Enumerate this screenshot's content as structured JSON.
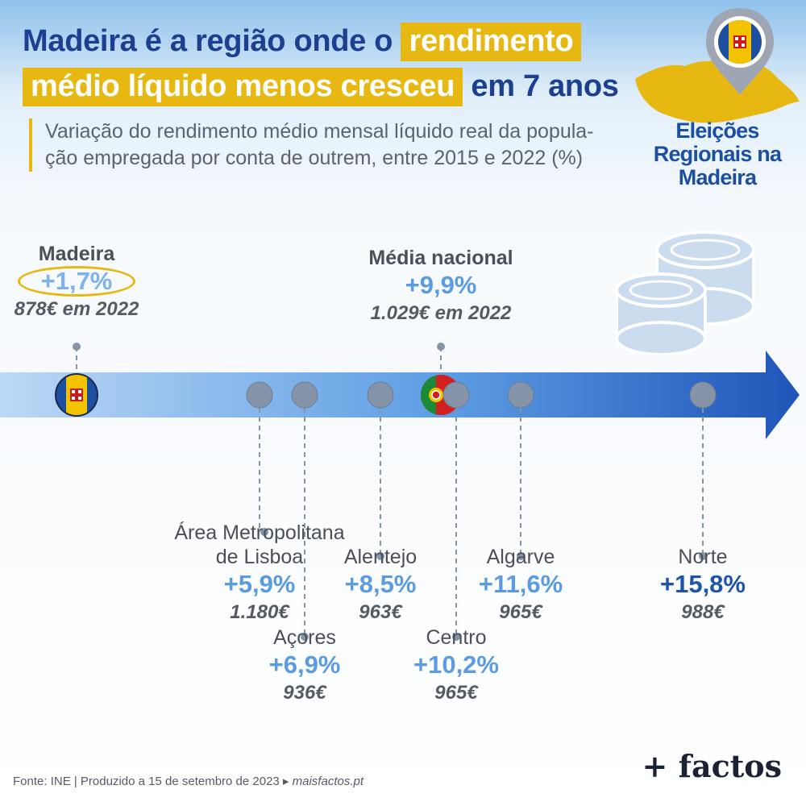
{
  "title": {
    "part1": "Madeira é a região onde o",
    "highlight1": "rendimento",
    "highlight2": "médio líquido menos cresceu",
    "part2": "em 7 anos"
  },
  "subtitle_line1": "Variação do rendimento médio mensal líquido real da popula-",
  "subtitle_line2": "ção empregada por conta de outrem, entre 2015 e 2022 (%)",
  "badge": {
    "line1": "Eleições",
    "line2": "Regionais na",
    "line3": "Madeira"
  },
  "colors": {
    "title": "#1c3f8f",
    "highlight": "#e7b812",
    "accent_light": "#5b9be0",
    "accent_dark": "#1f54a8",
    "dot": "#8594a8",
    "coins": "#cbdcee"
  },
  "chart_data": {
    "type": "timeline",
    "title": "Variação do rendimento médio mensal líquido real da população empregada por conta de outrem, entre 2015 e 2022 (%)",
    "unit": "%",
    "regions": [
      {
        "name": "Madeira",
        "change": 1.7,
        "change_label": "+1,7%",
        "income_label": "878€ em 2022",
        "income_2022": 878,
        "highlighted": true
      },
      {
        "name": "Área Metropolitana de Lisboa",
        "name_line1": "Área Metropolitana",
        "name_line2": "de Lisboa",
        "change": 5.9,
        "change_label": "+5,9%",
        "income_label": "1.180€",
        "income_2022": 1180
      },
      {
        "name": "Açores",
        "change": 6.9,
        "change_label": "+6,9%",
        "income_label": "936€",
        "income_2022": 936
      },
      {
        "name": "Alentejo",
        "change": 8.5,
        "change_label": "+8,5%",
        "income_label": "963€",
        "income_2022": 963
      },
      {
        "name": "Média nacional",
        "change": 9.9,
        "change_label": "+9,9%",
        "income_label": "1.029€ em 2022",
        "income_2022": 1029,
        "national": true
      },
      {
        "name": "Centro",
        "change": 10.2,
        "change_label": "+10,2%",
        "income_label": "965€",
        "income_2022": 965
      },
      {
        "name": "Algarve",
        "change": 11.6,
        "change_label": "+11,6%",
        "income_label": "965€",
        "income_2022": 965
      },
      {
        "name": "Norte",
        "change": 15.8,
        "change_label": "+15,8%",
        "income_label": "988€",
        "income_2022": 988
      }
    ]
  },
  "footer": {
    "source": "Fonte: INE | Produzido a 15 de setembro de 2023 ▸ ",
    "site": "maisfactos.pt"
  },
  "logo": "+ factos"
}
